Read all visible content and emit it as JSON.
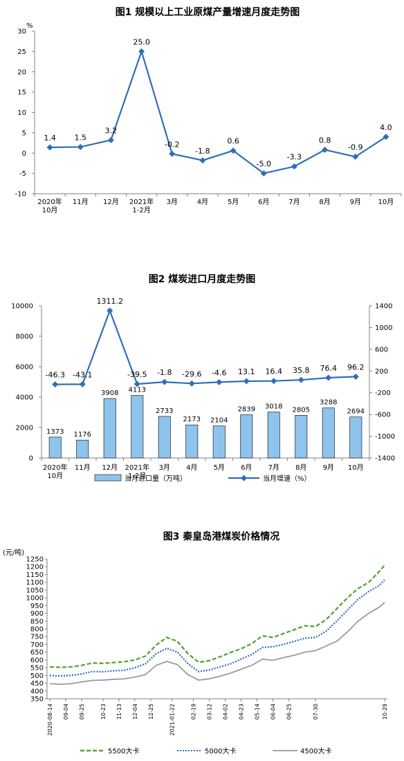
{
  "page": {
    "charts": [
      {
        "type": "line",
        "title": "图1  规模以上工业原煤产量增速月度走势图",
        "ylabel": "%",
        "ylim": [
          -10,
          30
        ],
        "yticks": [
          30,
          25,
          20,
          15,
          10,
          5,
          0,
          -5,
          -10
        ],
        "categories": [
          [
            "2020年",
            "10月"
          ],
          [
            "11月"
          ],
          [
            "12月"
          ],
          [
            "2021年",
            "1-2月"
          ],
          [
            "3月"
          ],
          [
            "4月"
          ],
          [
            "5月"
          ],
          [
            "6月"
          ],
          [
            "7月"
          ],
          [
            "8月"
          ],
          [
            "9月"
          ],
          [
            "10月"
          ]
        ],
        "series": [
          {
            "values": [
              1.4,
              1.5,
              3.2,
              25.0,
              -0.2,
              -1.8,
              0.6,
              -5.0,
              -3.3,
              0.8,
              -0.9,
              4.0
            ],
            "labels": [
              "1.4",
              "1.5",
              "3.2",
              "25.0",
              "-0.2",
              "-1.8",
              "0.6",
              "-5.0",
              "-3.3",
              "0.8",
              "-0.9",
              "4.0"
            ],
            "color": "#2f6eb8"
          }
        ],
        "grid": false
      },
      {
        "type": "bar",
        "title": "图2  煤炭进口月度走势图",
        "ylim": [
          0,
          10000
        ],
        "yticks": [
          10000,
          8000,
          6000,
          4000,
          2000,
          0
        ],
        "y2lim": [
          -1400,
          1400
        ],
        "y2ticks": [
          1400,
          1000,
          600,
          200,
          -200,
          -600,
          -1000,
          -1400
        ],
        "categories": [
          [
            "2020年",
            "10月"
          ],
          [
            "11月"
          ],
          [
            "12月"
          ],
          [
            "2021年",
            "1-2月"
          ],
          [
            "3月"
          ],
          [
            "4月"
          ],
          [
            "5月"
          ],
          [
            "6月"
          ],
          [
            "7月"
          ],
          [
            "8月"
          ],
          [
            "9月"
          ],
          [
            "10月"
          ]
        ],
        "series": [
          {
            "name": "当月进口量（万吨）",
            "kind": "bar",
            "axis": "left",
            "values": [
              1373,
              1176,
              3908,
              4113,
              2733,
              2173,
              2104,
              2839,
              3018,
              2805,
              3288,
              2694
            ],
            "labels": [
              "1373",
              "1176",
              "3908",
              "4113",
              "2733",
              "2173",
              "2104",
              "2839",
              "3018",
              "2805",
              "3288",
              "2694"
            ],
            "color": "#8ec3ec"
          },
          {
            "name": "当月增速（%）",
            "kind": "line",
            "axis": "right",
            "values": [
              -46.3,
              -43.1,
              1311.2,
              -39.5,
              -1.8,
              -29.6,
              -4.6,
              13.1,
              16.4,
              35.8,
              76.4,
              96.2
            ],
            "labels": [
              "-46.3",
              "-43.1",
              "1311.2",
              "-39.5",
              "-1.8",
              "-29.6",
              "-4.6",
              "13.1",
              "16.4",
              "35.8",
              "76.4",
              "96.2"
            ],
            "color": "#2f6eb8"
          }
        ],
        "legend": "bottom"
      },
      {
        "type": "line",
        "title": "图3    秦皇岛港煤炭价格情况",
        "ylabel": "(元/吨)",
        "ylim": [
          350,
          1250
        ],
        "yticks": [
          1250,
          1200,
          1150,
          1100,
          1050,
          1000,
          950,
          900,
          850,
          800,
          750,
          700,
          650,
          600,
          550,
          500,
          450,
          400,
          350
        ],
        "x": [
          "2020-08-14",
          "2020-08-28",
          "2020-09-11",
          "2020-09-25",
          "2020-10-09",
          "2020-10-23",
          "2020-11-06",
          "2020-11-20",
          "2020-12-04",
          "2020-12-18",
          "2021-01-01",
          "2021-01-15",
          "2021-01-29",
          "2021-02-12",
          "2021-02-26",
          "2021-03-12",
          "2021-03-26",
          "2021-04-09",
          "2021-04-23",
          "2021-05-07",
          "2021-05-21",
          "2021-06-04",
          "2021-06-18",
          "2021-07-02",
          "2021-07-16",
          "2021-07-30",
          "2021-08-13",
          "2021-08-27",
          "2021-09-10",
          "2021-09-24",
          "2021-10-08",
          "2021-10-22",
          "2021-10-29"
        ],
        "xticks": [
          "2020-08-14",
          "09-04",
          "09-25",
          "10-23",
          "11-13",
          "12-04",
          "12-25",
          "2021-01-22",
          "02-19",
          "03-12",
          "04-02",
          "04-23",
          "05-14",
          "06-04",
          "06-25",
          "07-30",
          "10-29"
        ],
        "series": [
          {
            "name": "5500大卡",
            "values": [
              555,
              552,
              555,
              565,
              580,
              578,
              583,
              588,
              600,
              625,
              695,
              745,
              720,
              640,
              585,
              595,
              620,
              648,
              672,
              705,
              755,
              745,
              770,
              795,
              820,
              815,
              860,
              930,
              1000,
              1060,
              1100,
              1170,
              1210
            ],
            "color": "#57a331",
            "dash": "6,3"
          },
          {
            "name": "5000大卡",
            "values": [
              500,
              497,
              500,
              510,
              525,
              524,
              530,
              533,
              550,
              575,
              640,
              675,
              650,
              575,
              525,
              535,
              555,
              575,
              605,
              635,
              680,
              685,
              700,
              720,
              740,
              745,
              785,
              850,
              920,
              990,
              1040,
              1080,
              1115
            ],
            "color": "#2f6eb8",
            "dash": "2,2"
          },
          {
            "name": "4500大卡",
            "values": [
              447,
              443,
              447,
              458,
              468,
              470,
              475,
              478,
              490,
              505,
              565,
              590,
              570,
              505,
              470,
              478,
              495,
              515,
              540,
              565,
              605,
              598,
              615,
              630,
              650,
              660,
              690,
              720,
              780,
              850,
              900,
              940,
              970
            ],
            "color": "#9a9a9a",
            "dash": ""
          }
        ],
        "legend": "bottom",
        "grid": false
      }
    ]
  }
}
